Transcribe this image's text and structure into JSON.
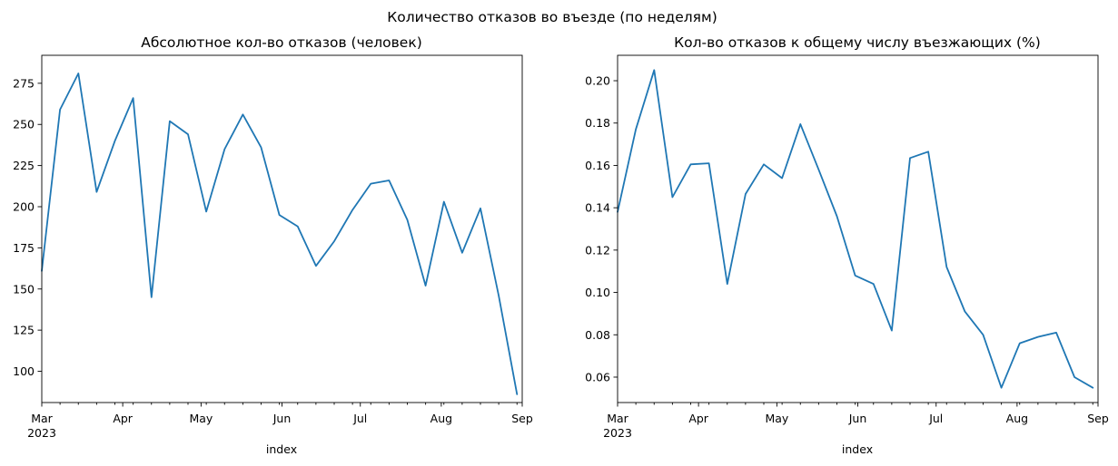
{
  "suptitle": "Количество отказов во въезде (по неделям)",
  "chart_data": [
    {
      "type": "line",
      "title": "Абсолютное кол-во отказов (человек)",
      "xlabel": "index",
      "ylabel": "",
      "x_ticks": [
        "Mar",
        "Apr",
        "May",
        "Jun",
        "Jul",
        "Aug",
        "Sep"
      ],
      "x_year_label": "2023",
      "y_ticks": [
        "100",
        "125",
        "150",
        "175",
        "200",
        "225",
        "250",
        "275"
      ],
      "y_tick_values": [
        100,
        125,
        150,
        175,
        200,
        225,
        250,
        275
      ],
      "ylim": [
        81,
        292
      ],
      "x": [
        "2023-03-01",
        "2023-03-08",
        "2023-03-15",
        "2023-03-22",
        "2023-03-29",
        "2023-04-05",
        "2023-04-12",
        "2023-04-19",
        "2023-04-26",
        "2023-05-03",
        "2023-05-10",
        "2023-05-17",
        "2023-05-24",
        "2023-05-31",
        "2023-06-07",
        "2023-06-14",
        "2023-06-21",
        "2023-06-28",
        "2023-07-05",
        "2023-07-12",
        "2023-07-19",
        "2023-07-26",
        "2023-08-02",
        "2023-08-09",
        "2023-08-16",
        "2023-08-23",
        "2023-08-30"
      ],
      "values": [
        161,
        259,
        281,
        209,
        240,
        266,
        145,
        252,
        244,
        197,
        235,
        256,
        236,
        195,
        188,
        164,
        179,
        198,
        214,
        216,
        192,
        152,
        203,
        172,
        199,
        146,
        86
      ]
    },
    {
      "type": "line",
      "title": "Кол-во отказов к общему числу въезжающих (%)",
      "xlabel": "index",
      "ylabel": "",
      "x_ticks": [
        "Mar",
        "Apr",
        "May",
        "Jun",
        "Jul",
        "Aug",
        "Sep"
      ],
      "x_year_label": "2023",
      "y_ticks": [
        "0.06",
        "0.08",
        "0.10",
        "0.12",
        "0.14",
        "0.16",
        "0.18",
        "0.20"
      ],
      "y_tick_values": [
        0.06,
        0.08,
        0.1,
        0.12,
        0.14,
        0.16,
        0.18,
        0.2
      ],
      "ylim": [
        0.048,
        0.212
      ],
      "x": [
        "2023-03-01",
        "2023-03-08",
        "2023-03-15",
        "2023-03-22",
        "2023-03-29",
        "2023-04-05",
        "2023-04-12",
        "2023-04-19",
        "2023-04-26",
        "2023-05-03",
        "2023-05-10",
        "2023-05-17",
        "2023-05-24",
        "2023-05-31",
        "2023-06-07",
        "2023-06-14",
        "2023-06-21",
        "2023-06-28",
        "2023-07-05",
        "2023-07-12",
        "2023-07-19",
        "2023-07-26",
        "2023-08-02",
        "2023-08-09",
        "2023-08-16",
        "2023-08-23",
        "2023-08-30"
      ],
      "values": [
        0.138,
        0.177,
        0.205,
        0.145,
        0.1605,
        0.161,
        0.104,
        0.1465,
        0.1605,
        0.154,
        0.1795,
        0.158,
        0.136,
        0.108,
        0.104,
        0.082,
        0.1635,
        0.1665,
        0.112,
        0.091,
        0.08,
        0.055,
        0.076,
        0.079,
        0.081,
        0.06,
        0.055
      ]
    }
  ]
}
